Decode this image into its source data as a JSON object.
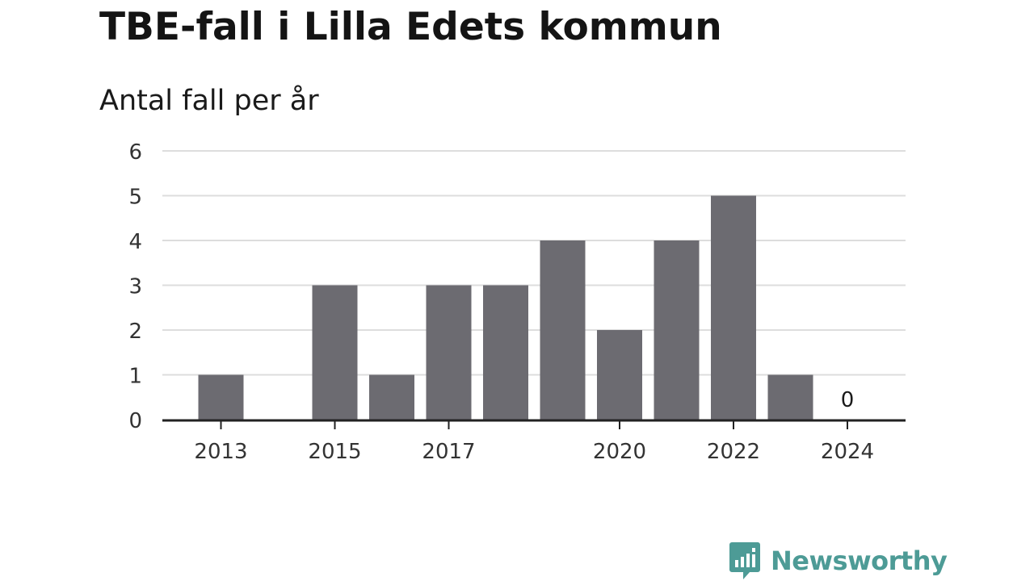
{
  "title": "TBE-fall i Lilla Edets kommun",
  "subtitle": "Antal fall per år",
  "brand": {
    "name": "Newsworthy",
    "color": "#4d9b96",
    "icon": "bar-chart-speech-bubble-icon"
  },
  "colors": {
    "bar": "#6c6b71",
    "grid": "#dddddd",
    "axis": "#222222"
  },
  "chart_data": {
    "type": "bar",
    "categories": [
      "2013",
      "2014",
      "2015",
      "2016",
      "2017",
      "2018",
      "2019",
      "2020",
      "2021",
      "2022",
      "2023",
      "2024"
    ],
    "values": [
      1,
      0,
      3,
      1,
      3,
      3,
      4,
      2,
      4,
      5,
      1,
      0
    ],
    "xtick_labels": [
      "2013",
      "2015",
      "2017",
      "2020",
      "2022",
      "2024"
    ],
    "ytick_labels": [
      "0",
      "1",
      "2",
      "3",
      "4",
      "5",
      "6"
    ],
    "data_labels": [
      {
        "category": "2024",
        "text": "0"
      }
    ],
    "title": "TBE-fall i Lilla Edets kommun",
    "subtitle": "Antal fall per år",
    "xlabel": "",
    "ylabel": "",
    "ylim": [
      0,
      6
    ],
    "grid": true,
    "legend": "none"
  }
}
